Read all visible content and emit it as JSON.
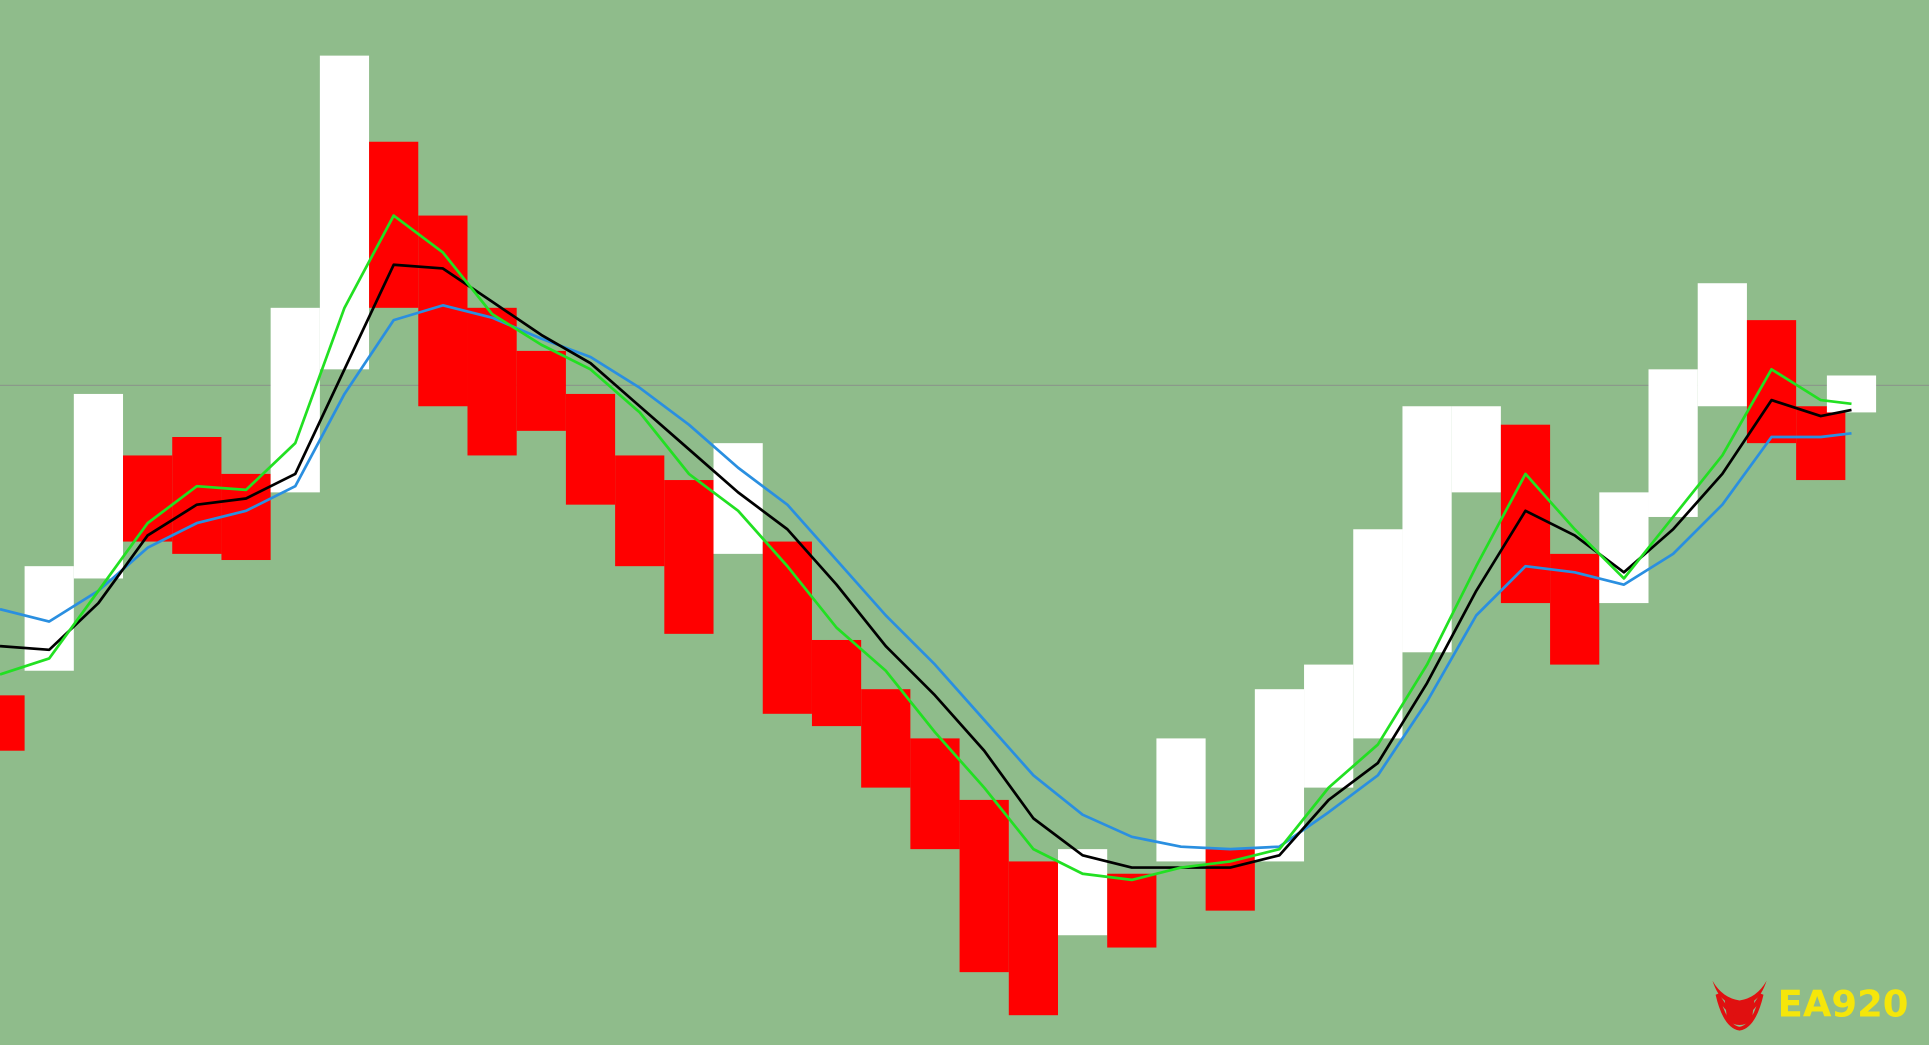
{
  "chart_data": {
    "type": "line",
    "background": "#8fbc8b",
    "x": [
      0,
      1,
      2,
      3,
      4,
      5,
      6,
      7,
      8,
      9,
      10,
      11,
      12,
      13,
      14,
      15,
      16,
      17,
      18,
      19,
      20,
      21,
      22,
      23,
      24,
      25,
      26,
      27,
      28,
      29,
      30,
      31,
      32,
      33,
      34,
      35,
      36,
      37,
      37.625
    ],
    "xlim": [
      0,
      39.2
    ],
    "ylim": [
      0,
      849
    ],
    "hline": 536,
    "hline_color": "#8a9a8a",
    "price": {
      "high": [
        284,
        389,
        529,
        479,
        494,
        464,
        599,
        804,
        734,
        674,
        599,
        564,
        529,
        479,
        459,
        489,
        409,
        329,
        289,
        249,
        199,
        149,
        159,
        139,
        249,
        159,
        289,
        309,
        419,
        519,
        519,
        504,
        399,
        449,
        549,
        619,
        589,
        519,
        544
      ],
      "low": [
        239,
        304,
        379,
        409,
        399,
        394,
        449,
        549,
        599,
        519,
        479,
        499,
        439,
        389,
        334,
        399,
        269,
        259,
        209,
        159,
        59,
        24,
        89,
        79,
        149,
        109,
        149,
        209,
        249,
        319,
        449,
        359,
        309,
        359,
        429,
        519,
        489,
        459,
        514
      ],
      "colors": [
        "#ff0000",
        "#ffffff",
        "#ffffff",
        "#ff0000",
        "#ff0000",
        "#ff0000",
        "#ffffff",
        "#ffffff",
        "#ff0000",
        "#ff0000",
        "#ff0000",
        "#ff0000",
        "#ff0000",
        "#ff0000",
        "#ff0000",
        "#ffffff",
        "#ff0000",
        "#ff0000",
        "#ff0000",
        "#ff0000",
        "#ff0000",
        "#ff0000",
        "#ffffff",
        "#ff0000",
        "#ffffff",
        "#ff0000",
        "#ffffff",
        "#ffffff",
        "#ffffff",
        "#ffffff",
        "#ffffff",
        "#ff0000",
        "#ff0000",
        "#ffffff",
        "#ffffff",
        "#ffffff",
        "#ff0000",
        "#ff0000",
        "#ffffff"
      ]
    },
    "series": [
      {
        "color": "#2a8fe0",
        "values": [
          354,
          344,
          369,
          404,
          424,
          434,
          454,
          529,
          589,
          601,
          591,
          574,
          559,
          534,
          504,
          469,
          439,
          394,
          349,
          309,
          264,
          219,
          187,
          169,
          161,
          159,
          161,
          189,
          219,
          279,
          349,
          389,
          384,
          374,
          399,
          439,
          494,
          494,
          497
        ]
      },
      {
        "color": "#000000",
        "values": [
          324,
          321,
          359,
          414,
          439,
          444,
          464,
          549,
          634,
          631,
          604,
          577,
          554,
          519,
          484,
          449,
          419,
          374,
          324,
          284,
          239,
          184,
          154,
          144,
          144,
          144,
          154,
          199,
          229,
          294,
          369,
          434,
          414,
          384,
          419,
          464,
          524,
          511,
          516
        ]
      },
      {
        "color": "#22e022",
        "values": [
          301,
          314,
          369,
          424,
          454,
          451,
          489,
          599,
          674,
          644,
          594,
          569,
          549,
          514,
          464,
          434,
          389,
          339,
          304,
          254,
          209,
          159,
          139,
          134,
          144,
          149,
          159,
          209,
          244,
          309,
          389,
          464,
          419,
          379,
          429,
          479,
          549,
          524,
          521
        ]
      }
    ],
    "logo": "EA920"
  }
}
